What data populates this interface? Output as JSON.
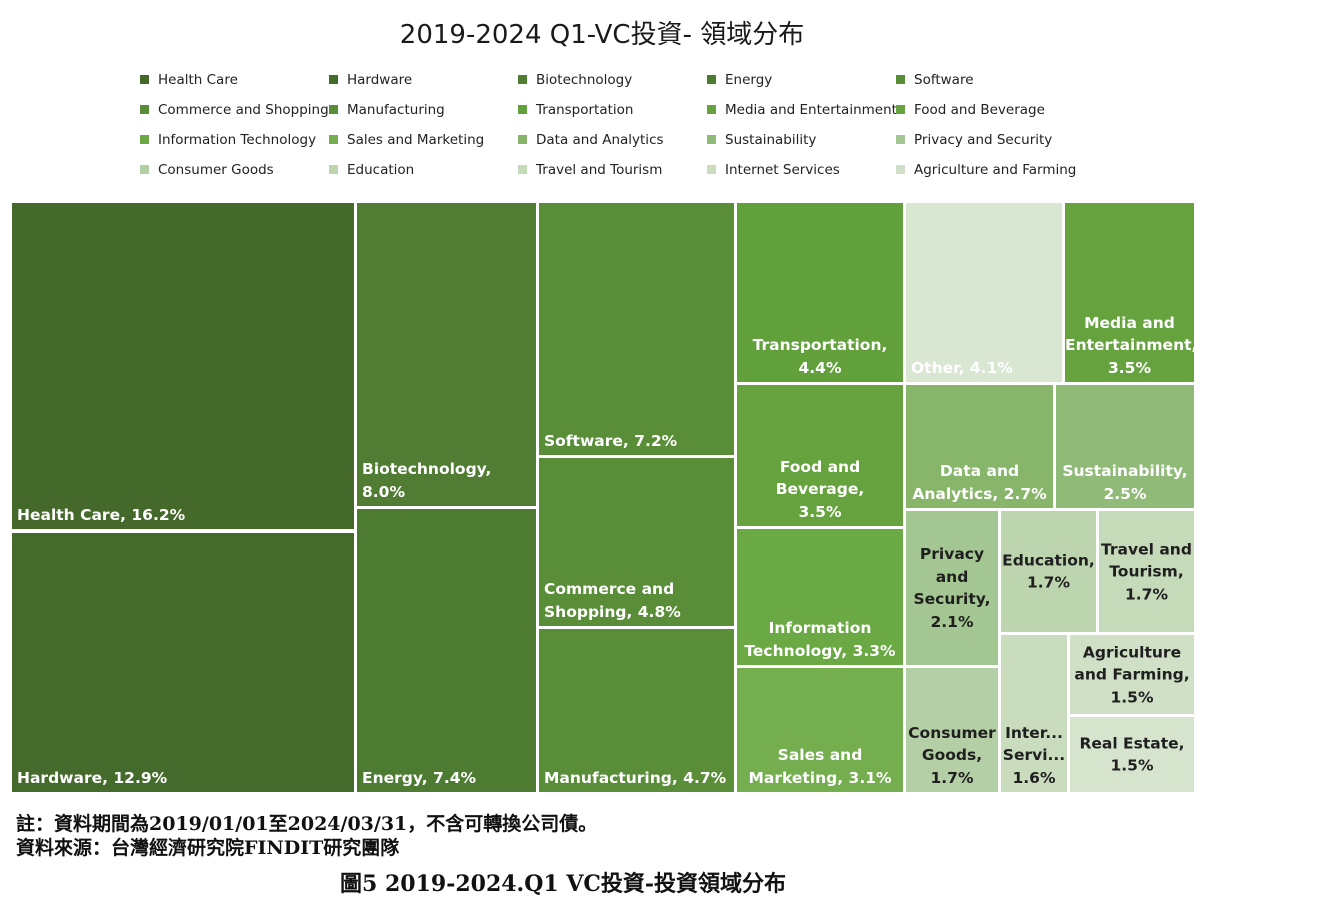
{
  "chart_data": {
    "type": "treemap",
    "title": "2019-2024 Q1-VC投資- 領域分布",
    "legend_position": "top",
    "items": [
      {
        "name": "Health Care",
        "label": "Health Care, 16.2%",
        "value": 16.2,
        "color": "#44692a"
      },
      {
        "name": "Hardware",
        "label": "Hardware, 12.9%",
        "value": 12.9,
        "color": "#456b2c"
      },
      {
        "name": "Biotechnology",
        "label": "Biotechnology, 8.0%",
        "value": 8.0,
        "color": "#507c34"
      },
      {
        "name": "Energy",
        "label": "Energy, 7.4%",
        "value": 7.4,
        "color": "#4e7b32"
      },
      {
        "name": "Software",
        "label": "Software, 7.2%",
        "value": 7.2,
        "color": "#5a8d38"
      },
      {
        "name": "Commerce and Shopping",
        "label": "Commerce and Shopping, 4.8%",
        "value": 4.8,
        "color": "#5a8d38"
      },
      {
        "name": "Manufacturing",
        "label": "Manufacturing, 4.7%",
        "value": 4.7,
        "color": "#5a8d38"
      },
      {
        "name": "Transportation",
        "label": "Transportation, 4.4%",
        "value": 4.4,
        "color": "#62a03c"
      },
      {
        "name": "Other",
        "label": "Other, 4.1%",
        "value": 4.1,
        "color": "#d9e6d2"
      },
      {
        "name": "Media and Entertainment",
        "label": "Media and Entertainment, 3.5%",
        "value": 3.5,
        "color": "#66a33f"
      },
      {
        "name": "Food and Beverage",
        "label": "Food and Beverage, 3.5%",
        "value": 3.5,
        "color": "#66a33f"
      },
      {
        "name": "Information Technology",
        "label": "Information Technology, 3.3%",
        "value": 3.3,
        "color": "#6aa943"
      },
      {
        "name": "Sales and Marketing",
        "label": "Sales and Marketing, 3.1%",
        "value": 3.1,
        "color": "#74ae4e"
      },
      {
        "name": "Data and Analytics",
        "label": "Data and Analytics, 2.7%",
        "value": 2.7,
        "color": "#87b66b"
      },
      {
        "name": "Sustainability",
        "label": "Sustainability, 2.5%",
        "value": 2.5,
        "color": "#8fba77"
      },
      {
        "name": "Privacy and Security",
        "label": "Privacy and Security, 2.1%",
        "value": 2.1,
        "color": "#a4c692"
      },
      {
        "name": "Consumer Goods",
        "label": "Consumer Goods, 1.7%",
        "value": 1.7,
        "color": "#b4cfa5"
      },
      {
        "name": "Education",
        "label": "Education, 1.7%",
        "value": 1.7,
        "color": "#bdd5af"
      },
      {
        "name": "Travel and Tourism",
        "label": "Travel and Tourism, 1.7%",
        "value": 1.7,
        "color": "#c5dab9"
      },
      {
        "name": "Internet Services",
        "label": "Inter... Servi... 1.6%",
        "value": 1.6,
        "color": "#cadcbe"
      },
      {
        "name": "Agriculture and Farming",
        "label": "Agriculture and Farming, 1.5%",
        "value": 1.5,
        "color": "#cfe0c6"
      },
      {
        "name": "Real Estate",
        "label": "Real Estate, 1.5%",
        "value": 1.5,
        "color": "#d6e4ce"
      }
    ],
    "legend": [
      "Health Care",
      "Hardware",
      "Biotechnology",
      "Energy",
      "Software",
      "Commerce and Shopping",
      "Manufacturing",
      "Transportation",
      "Media and Entertainment",
      "Food and Beverage",
      "Information Technology",
      "Sales and Marketing",
      "Data and Analytics",
      "Sustainability",
      "Privacy and Security",
      "Consumer Goods",
      "Education",
      "Travel and Tourism",
      "Internet Services",
      "Agriculture and Farming"
    ]
  },
  "notes": {
    "period": "註：資料期間為2019/01/01至2024/03/31，不含可轉換公司債。",
    "source": "資料來源：台灣經濟研究院FINDIT研究團隊"
  },
  "figure_caption": "圖5  2019-2024.Q1 VC投資-投資領域分布"
}
